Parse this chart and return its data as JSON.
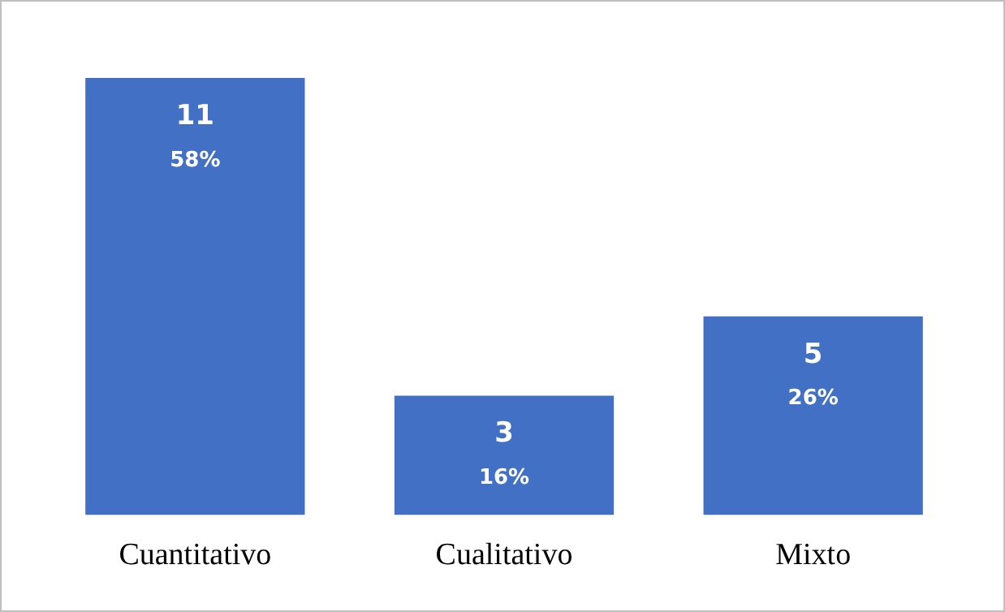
{
  "chart_data": {
    "type": "bar",
    "categories": [
      "Cuantitativo",
      "Cualitativo",
      "Mixto"
    ],
    "values": [
      11,
      3,
      5
    ],
    "color": "#4170c4",
    "tick_labels": "x",
    "grid": false,
    "legend": false,
    "value_labels": [
      "11\n58%",
      "3\n16%",
      "5\n26%"
    ]
  }
}
